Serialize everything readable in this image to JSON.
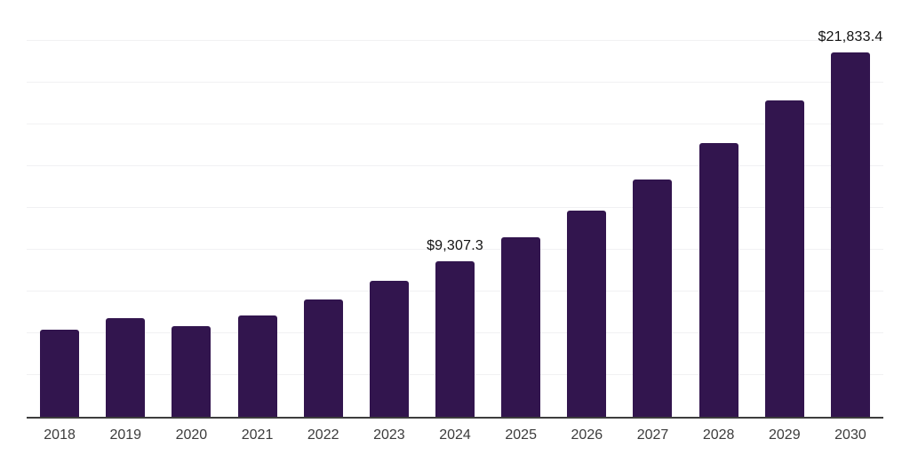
{
  "chart_data": {
    "type": "bar",
    "title": "",
    "xlabel": "",
    "ylabel": "",
    "categories": [
      "2018",
      "2019",
      "2020",
      "2021",
      "2022",
      "2023",
      "2024",
      "2025",
      "2026",
      "2027",
      "2028",
      "2029",
      "2030"
    ],
    "values": [
      5210,
      5915,
      5425,
      6090,
      7015,
      8160,
      9307.3,
      10730,
      12325,
      14180,
      16390,
      18920,
      21833.4
    ],
    "data_labels": {
      "2024": "$9,307.3",
      "2030": "$21,833.4"
    },
    "ylim": [
      0,
      25000
    ],
    "gridline_step": 2500,
    "grid": "horizontal-only",
    "legend": "none",
    "y_tick_labels_visible": false
  },
  "colors": {
    "bar": "#32154e",
    "gridline": "#f1f1f3",
    "axis_line": "#3d3d3d",
    "tick_text": "#3c3c3c",
    "data_label_text": "#121212",
    "background": "#ffffff"
  }
}
